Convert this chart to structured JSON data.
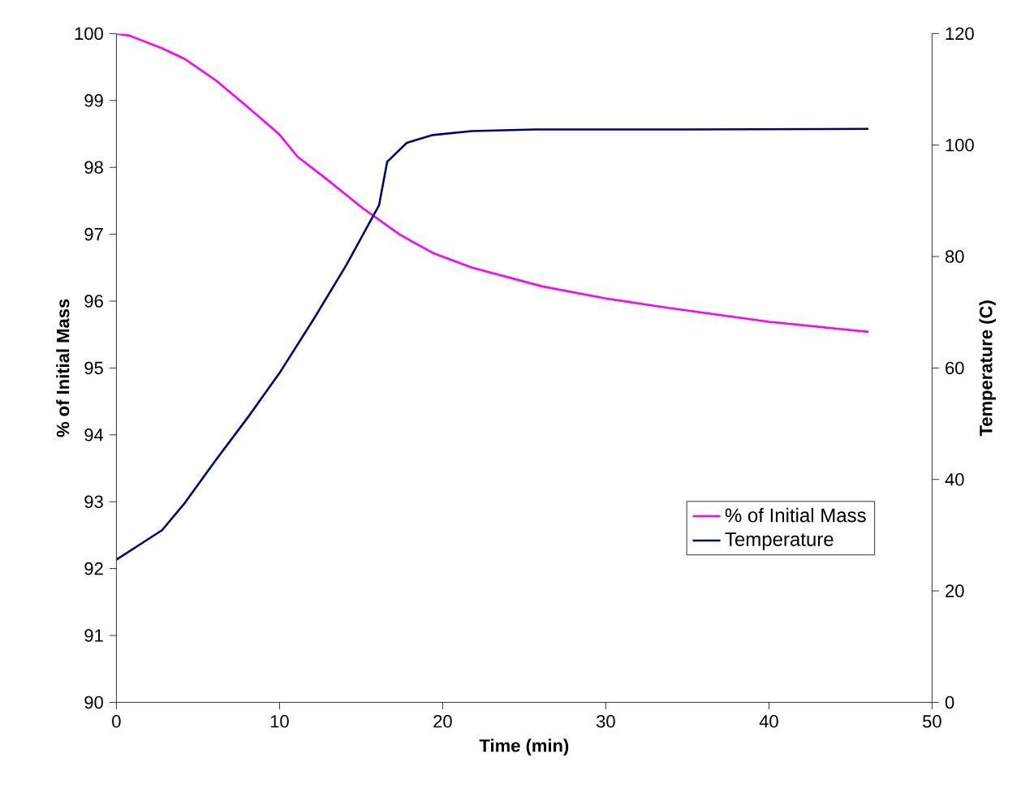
{
  "chart_data": {
    "type": "line",
    "xlabel": "Time (min)",
    "ylabel": "% of Initial Mass",
    "y2label": "Temperature (C)",
    "xlim": [
      0,
      50
    ],
    "xticks": [
      0,
      10,
      20,
      30,
      40,
      50
    ],
    "ylim": [
      90,
      100
    ],
    "yticks": [
      90,
      91,
      92,
      93,
      94,
      95,
      96,
      97,
      98,
      99,
      100
    ],
    "y2lim": [
      0,
      120
    ],
    "y2ticks": [
      0,
      20,
      40,
      60,
      80,
      100,
      120
    ],
    "legend": "bottom right",
    "grid": false,
    "marker": "none",
    "line_style": "solid",
    "series": [
      {
        "name": "% of Initial Mass",
        "color": "#ff00ff",
        "x": [
          0,
          0.8,
          2.8,
          4.2,
          6.1,
          8.1,
          10,
          11.1,
          12.8,
          15.1,
          17.4,
          19.4,
          21.8,
          26.1,
          30,
          33.8,
          40,
          46.1
        ],
        "values": [
          100,
          99.97,
          99.78,
          99.62,
          99.3,
          98.89,
          98.49,
          98.16,
          97.84,
          97.39,
          96.99,
          96.72,
          96.5,
          96.22,
          96.04,
          95.9,
          95.69,
          95.54
        ]
      },
      {
        "name": "Temperature",
        "color": "#000080",
        "axis": "y2",
        "x": [
          0,
          1.8,
          2.8,
          4.2,
          6.1,
          8.1,
          10,
          12.1,
          14.1,
          16.1,
          16.6,
          17.8,
          19.4,
          21.8,
          25.7,
          35,
          46.1
        ],
        "values": [
          25.6,
          29,
          30.9,
          35.8,
          43.5,
          51.3,
          59.1,
          68.8,
          78.5,
          89.2,
          97,
          100.4,
          101.8,
          102.5,
          102.8,
          102.8,
          102.9
        ]
      }
    ]
  }
}
